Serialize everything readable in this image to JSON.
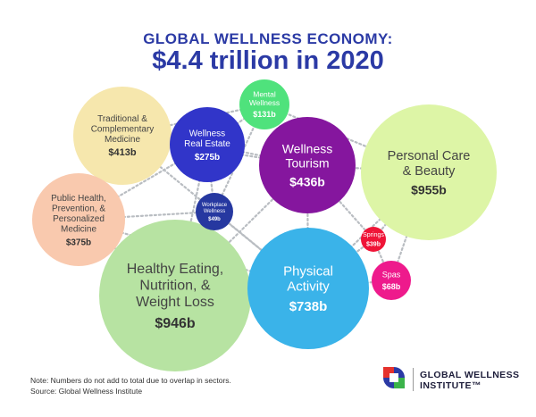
{
  "header": {
    "title_line1": "GLOBAL WELLNESS ECONOMY:",
    "title_line2": "$4.4 trillion in 2020"
  },
  "footer": {
    "note": "Note: Numbers do not add to total due to overlap in sectors.",
    "source": "Source: Global Wellness Institute",
    "logo_line1": "GLOBAL WELLNESS",
    "logo_line2": "INSTITUTE™"
  },
  "chart_data": {
    "type": "bubble",
    "title": "$4.4 trillion in 2020",
    "unit": "$b",
    "categories": [
      "Traditional & Complementary Medicine",
      "Wellness Real Estate",
      "Mental Wellness",
      "Wellness Tourism",
      "Personal Care & Beauty",
      "Public Health, Prevention, & Personalized Medicine",
      "Workplace Wellness",
      "Springs",
      "Healthy Eating, Nutrition, & Weight Loss",
      "Physical Activity",
      "Spas"
    ],
    "values": [
      413,
      275,
      131,
      436,
      955,
      375,
      49,
      39,
      946,
      738,
      68
    ],
    "value_labels": [
      "$413b",
      "$275b",
      "$131b",
      "$436b",
      "$955b",
      "$375b",
      "$49b",
      "$39b",
      "$946b",
      "$738b",
      "$68b"
    ],
    "colors": [
      "#f6e7ad",
      "#3135c9",
      "#4fe27c",
      "#85169e",
      "#ddf5a6",
      "#f9c9ae",
      "#2638a0",
      "#ef1437",
      "#b7e3a2",
      "#3ab3e9",
      "#ee1a8c"
    ],
    "label_lines": [
      [
        "Traditional &",
        "Complementary",
        "Medicine"
      ],
      [
        "Wellness",
        "Real Estate"
      ],
      [
        "Mental",
        "Wellness"
      ],
      [
        "Wellness",
        "Tourism"
      ],
      [
        "Personal Care",
        "& Beauty"
      ],
      [
        "Public Health,",
        "Prevention, &",
        "Personalized",
        "Medicine"
      ],
      [
        "Workplace",
        "Wellness"
      ],
      [
        "Springs"
      ],
      [
        "Healthy Eating,",
        "Nutrition, &",
        "Weight Loss"
      ],
      [
        "Physical",
        "Activity"
      ],
      [
        "Spas"
      ]
    ],
    "text_colors": [
      "#444444",
      "#ffffff",
      "#ffffff",
      "#ffffff",
      "#444444",
      "#444444",
      "#ffffff",
      "#ffffff",
      "#444444",
      "#ffffff",
      "#ffffff"
    ]
  }
}
